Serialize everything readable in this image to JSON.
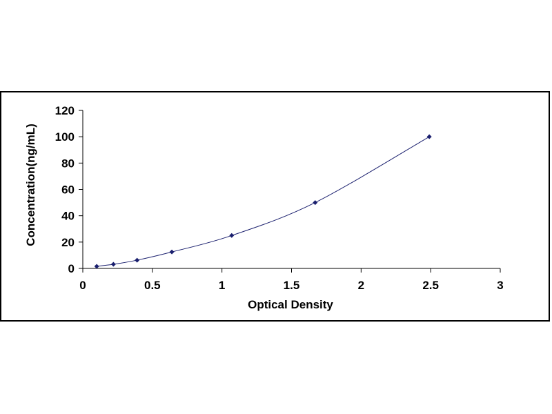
{
  "chart_data": {
    "type": "scatter",
    "title": "",
    "xlabel": "Optical Density",
    "ylabel": "Concentration(ng/mL)",
    "xlim": [
      0,
      3
    ],
    "ylim": [
      0,
      120
    ],
    "x_ticks": [
      0,
      0.5,
      1,
      1.5,
      2,
      2.5,
      3
    ],
    "x_tick_labels": [
      "0",
      "0.5",
      "1",
      "1.5",
      "2",
      "2.5",
      "3"
    ],
    "y_ticks": [
      0,
      20,
      40,
      60,
      80,
      100,
      120
    ],
    "y_tick_labels": [
      "0",
      "20",
      "40",
      "60",
      "80",
      "100",
      "120"
    ],
    "grid": false,
    "legend": "none",
    "series": [
      {
        "x": [
          0.1,
          0.22,
          0.39,
          0.64,
          1.07,
          1.67,
          2.49
        ],
        "y": [
          1.56,
          3.12,
          6.25,
          12.5,
          25,
          50,
          100
        ],
        "marker": "diamond",
        "fit_line": true
      }
    ],
    "colors": {
      "marker": "#1a1f6e",
      "line": "#1a1f6e",
      "axes": "#000000"
    }
  }
}
